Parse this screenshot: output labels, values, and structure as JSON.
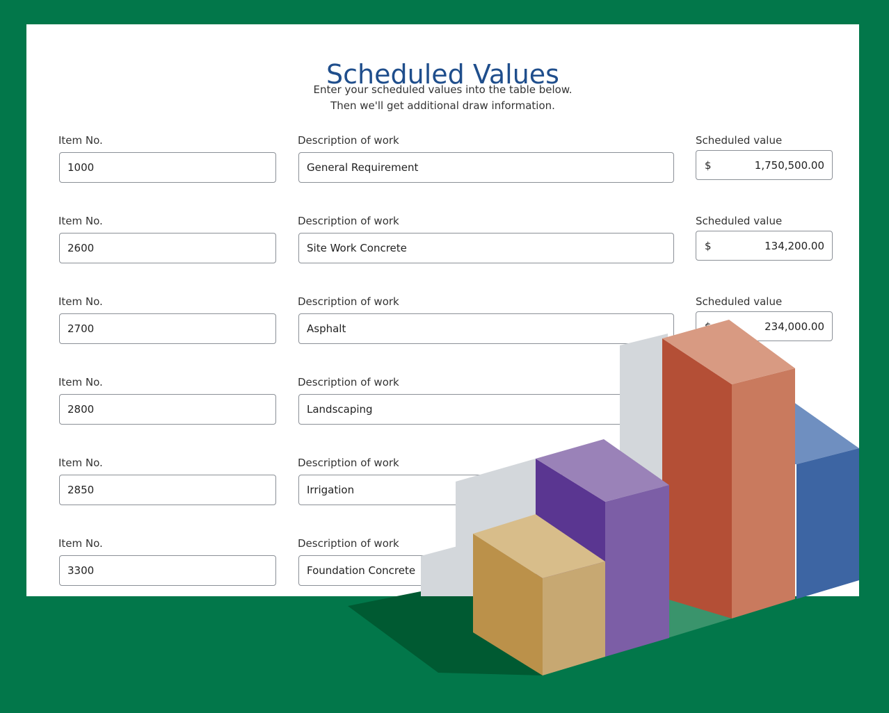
{
  "header": {
    "title": "Scheduled Values",
    "subtitle": [
      "Enter your scheduled values into the table below.",
      "Then we'll get additional draw information."
    ]
  },
  "table": {
    "rows": [
      {
        "item_label": "Item No.",
        "item_no": "1000",
        "description_label": "Description of work",
        "description": "General Requirement",
        "value_label": "Scheduled value",
        "currency": "$",
        "value": "1,750,500.00"
      },
      {
        "item_label": "Item No.",
        "item_no": "2600",
        "description_label": "Description of work",
        "description": "Site Work Concrete",
        "value_label": "Scheduled value",
        "currency": "$",
        "value": "134,200.00"
      },
      {
        "item_label": "Item No.",
        "item_no": "2700",
        "description_label": "Description of work",
        "description": "Asphalt",
        "value_label": "Scheduled value",
        "currency": "$",
        "value": "234,000.00"
      },
      {
        "item_label": "Item No.",
        "item_no": "2800",
        "description_label": "Description of work",
        "description": "Landscaping"
      },
      {
        "item_label": "Item No.",
        "item_no": "2850",
        "description_label": "Description of work",
        "description": "Irrigation"
      },
      {
        "item_label": "Item No.",
        "item_no": "3300",
        "description_label": "Description of work",
        "description": "Foundation Concrete"
      }
    ]
  }
}
